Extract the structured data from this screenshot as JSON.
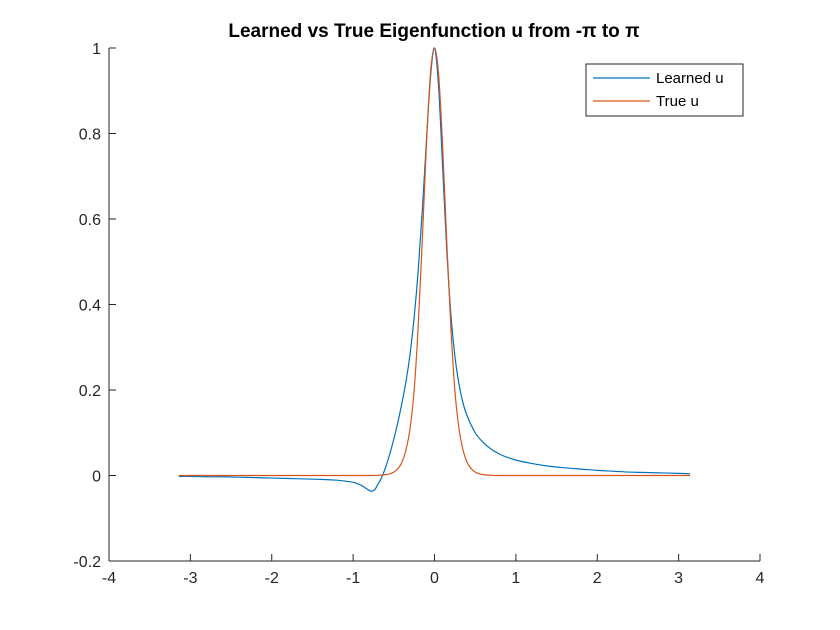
{
  "chart_data": {
    "type": "line",
    "title": "Learned vs True Eigenfunction u from -π to π",
    "xlabel": "",
    "ylabel": "",
    "xlim": [
      -4,
      4
    ],
    "ylim": [
      -0.2,
      1
    ],
    "xticks": [
      -4,
      -3,
      -2,
      -1,
      0,
      1,
      2,
      3,
      4
    ],
    "yticks": [
      -0.2,
      0,
      0.2,
      0.4,
      0.6,
      0.8,
      1
    ],
    "xtick_labels": [
      "-4",
      "-3",
      "-2",
      "-1",
      "0",
      "1",
      "2",
      "3",
      "4"
    ],
    "ytick_labels": [
      "-0.2",
      "0",
      "0.2",
      "0.4",
      "0.6",
      "0.8",
      "1"
    ],
    "grid": false,
    "legend_position": "top-right",
    "series": [
      {
        "name": "Learned u",
        "color": "#0072BD",
        "x": [
          -3.1416,
          -3.0,
          -2.8,
          -2.6,
          -2.4,
          -2.2,
          -2.0,
          -1.8,
          -1.6,
          -1.4,
          -1.2,
          -1.1,
          -1.0,
          -0.95,
          -0.9,
          -0.85,
          -0.8,
          -0.77,
          -0.73,
          -0.7,
          -0.65,
          -0.6,
          -0.55,
          -0.5,
          -0.45,
          -0.4,
          -0.35,
          -0.3,
          -0.25,
          -0.2,
          -0.15,
          -0.1,
          -0.05,
          0.0,
          0.05,
          0.1,
          0.15,
          0.2,
          0.25,
          0.3,
          0.35,
          0.4,
          0.5,
          0.6,
          0.7,
          0.8,
          0.9,
          1.0,
          1.2,
          1.4,
          1.6,
          1.8,
          2.0,
          2.2,
          2.4,
          2.6,
          2.8,
          3.0,
          3.1416
        ],
        "y": [
          -0.002,
          -0.002,
          -0.003,
          -0.003,
          -0.004,
          -0.005,
          -0.006,
          -0.007,
          -0.008,
          -0.009,
          -0.011,
          -0.013,
          -0.016,
          -0.019,
          -0.023,
          -0.029,
          -0.035,
          -0.037,
          -0.032,
          -0.022,
          -0.005,
          0.02,
          0.05,
          0.085,
          0.125,
          0.17,
          0.22,
          0.285,
          0.37,
          0.48,
          0.62,
          0.78,
          0.93,
          1.0,
          0.91,
          0.72,
          0.53,
          0.38,
          0.28,
          0.215,
          0.17,
          0.14,
          0.1,
          0.077,
          0.061,
          0.05,
          0.042,
          0.036,
          0.028,
          0.022,
          0.018,
          0.015,
          0.012,
          0.01,
          0.008,
          0.007,
          0.006,
          0.005,
          0.004
        ]
      },
      {
        "name": "True u",
        "color": "#D95319",
        "x": [
          -3.1416,
          -2.5,
          -2.0,
          -1.5,
          -1.0,
          -0.8,
          -0.7,
          -0.6,
          -0.55,
          -0.5,
          -0.45,
          -0.4,
          -0.35,
          -0.3,
          -0.25,
          -0.2,
          -0.15,
          -0.1,
          -0.05,
          0.0,
          0.05,
          0.1,
          0.15,
          0.2,
          0.25,
          0.3,
          0.35,
          0.4,
          0.45,
          0.5,
          0.55,
          0.6,
          0.7,
          0.8,
          1.0,
          1.5,
          2.0,
          2.5,
          3.1416
        ],
        "y": [
          0.0,
          0.0,
          0.0,
          0.0,
          0.0,
          0.0,
          0.0004,
          0.002,
          0.004,
          0.008,
          0.016,
          0.031,
          0.06,
          0.11,
          0.2,
          0.35,
          0.55,
          0.77,
          0.94,
          1.0,
          0.94,
          0.77,
          0.55,
          0.35,
          0.2,
          0.11,
          0.06,
          0.031,
          0.016,
          0.008,
          0.004,
          0.002,
          0.0004,
          0.0,
          0.0,
          0.0,
          0.0,
          0.0,
          0.0
        ]
      }
    ]
  }
}
